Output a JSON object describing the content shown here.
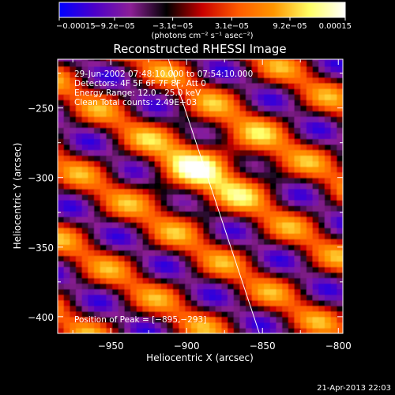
{
  "chart_data": {
    "type": "heatmap",
    "title": "Reconstructed RHESSI Image",
    "xlabel": "Heliocentric X (arcsec)",
    "ylabel": "Heliocentric Y (arcsec)",
    "xlim": [
      -985,
      -797
    ],
    "ylim": [
      -412,
      -215
    ],
    "x_ticks": [
      -950,
      -900,
      -850,
      -800
    ],
    "x_tick_labels": [
      "−950",
      "−900",
      "−850",
      "−800"
    ],
    "y_ticks": [
      -250,
      -300,
      -350,
      -400
    ],
    "y_tick_labels": [
      "−250",
      "−300",
      "−350",
      "−400"
    ],
    "colorbar": {
      "range": [
        -0.00015,
        0.00015
      ],
      "tick_labels": [
        "−0.00015",
        "−9.2e−05",
        "−3.1e−05",
        "3.1e−05",
        "9.2e−05",
        "0.00015"
      ],
      "units_label": "(photons cm⁻² s⁻¹ asec⁻²)",
      "colormap": [
        "#0000ff",
        "#4d00c8",
        "#8c1f96",
        "#000000",
        "#c80000",
        "#ff5a00",
        "#ff9600",
        "#ffff64",
        "#ffffff"
      ]
    },
    "annotations": {
      "time_range": "29-Jun-2002 07:48:10.000 to 07:54:10.000",
      "detectors": "Detectors: 4F 5F 6F 7F 8F, Att 0",
      "energy_range": "Energy Range: 12.0 - 25.0 keV",
      "clean": "Clean    Total counts: 2.49E+03",
      "peak": "Position of Peak = [−895,−293]"
    },
    "peak": {
      "x": -895,
      "y": -293
    },
    "limb_line": [
      {
        "x": -912,
        "y": -215
      },
      {
        "x": -852,
        "y": -412
      }
    ],
    "grid": false
  },
  "footer": {
    "timestamp": "21-Apr-2013 22:03"
  }
}
